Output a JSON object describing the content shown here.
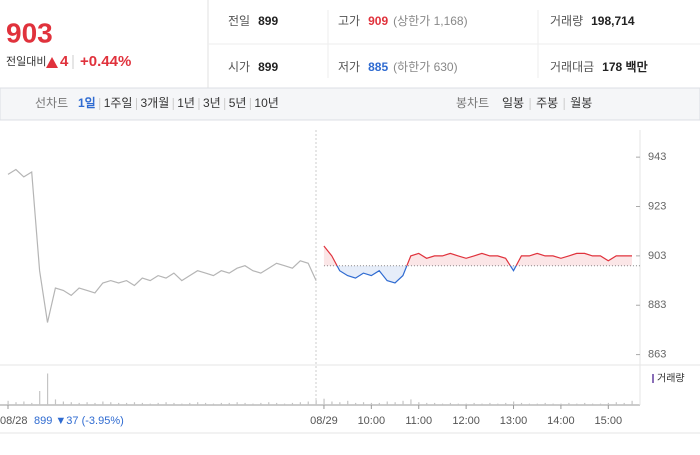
{
  "quote": {
    "price": "903",
    "change_label": "전일대비",
    "change": "4",
    "change_pct": "+0.44%"
  },
  "stats": [
    [
      {
        "label": "전일",
        "value": "899"
      },
      {
        "label": "고가",
        "value": "909",
        "note": "(상한가 1,168)"
      },
      {
        "label": "거래량",
        "value": "198,714"
      }
    ],
    [
      {
        "label": "시가",
        "value": "899"
      },
      {
        "label": "저가",
        "value": "885",
        "note": "(하한가 630)"
      },
      {
        "label": "거래대금",
        "value": "178 백만"
      }
    ]
  ],
  "tabs": {
    "line_label": "선차트",
    "periods": [
      "1일",
      "1주일",
      "3개월",
      "1년",
      "3년",
      "5년",
      "10년"
    ],
    "active": 0,
    "candle_label": "봉차트",
    "candles": [
      "일봉",
      "주봉",
      "월봉"
    ]
  },
  "chart_data": {
    "type": "line",
    "categories": [
      "08/28",
      null,
      null,
      null,
      null,
      null,
      null,
      null,
      null,
      null,
      null,
      null,
      null,
      null,
      null,
      null,
      null,
      null,
      null,
      null,
      null,
      null,
      null,
      null,
      null,
      null,
      null,
      null,
      null,
      null,
      null,
      null,
      null,
      null,
      null,
      null,
      null,
      null,
      null,
      null,
      "08/29",
      null,
      null,
      null,
      null,
      null,
      "10:00",
      null,
      null,
      null,
      null,
      null,
      "11:00",
      null,
      null,
      null,
      null,
      null,
      "12:00",
      null,
      null,
      null,
      null,
      null,
      "13:00",
      null,
      null,
      null,
      null,
      null,
      "14:00",
      null,
      null,
      null,
      null,
      null,
      "15:00",
      null,
      null,
      null
    ],
    "series": [
      {
        "color": "#b5b5b5",
        "values": [
          936,
          938,
          935,
          937,
          897,
          876,
          890,
          889,
          887,
          890,
          889,
          888,
          892,
          893,
          892,
          893,
          891,
          894,
          893,
          895,
          894,
          896,
          893,
          895,
          897,
          896,
          895,
          897,
          896,
          898,
          899,
          897,
          896,
          898,
          900,
          899,
          898,
          901,
          900,
          893,
          null,
          null,
          null,
          null,
          null,
          null,
          null,
          null,
          null,
          null,
          null,
          null,
          null,
          null,
          null,
          null,
          null,
          null,
          null,
          null,
          null,
          null,
          null,
          null,
          null,
          null,
          null,
          null,
          null,
          null,
          null,
          null,
          null,
          null,
          null,
          null,
          null,
          null,
          null,
          null
        ]
      },
      {
        "up_color": "#e0323c",
        "down_color": "#2f6bd1",
        "values": [
          null,
          null,
          null,
          null,
          null,
          null,
          null,
          null,
          null,
          null,
          null,
          null,
          null,
          null,
          null,
          null,
          null,
          null,
          null,
          null,
          null,
          null,
          null,
          null,
          null,
          null,
          null,
          null,
          null,
          null,
          null,
          null,
          null,
          null,
          null,
          null,
          null,
          null,
          null,
          null,
          907,
          903,
          897,
          895,
          894,
          896,
          895,
          897,
          893,
          892,
          895,
          903,
          904,
          902,
          903,
          903,
          904,
          903,
          902,
          903,
          904,
          903,
          903,
          902,
          897,
          903,
          903,
          904,
          903,
          903,
          902,
          903,
          904,
          904,
          903,
          903,
          901,
          903,
          903,
          903
        ]
      }
    ],
    "reference_line": 899,
    "ylim": [
      860,
      954
    ],
    "yticks": [
      943,
      923,
      903,
      883,
      863
    ],
    "volume": {
      "name": "거래량",
      "color": "#c4c4c4",
      "ylim": [
        0,
        50
      ],
      "values": [
        6,
        4,
        5,
        3,
        20,
        45,
        8,
        5,
        4,
        3,
        4,
        3,
        5,
        4,
        3,
        3,
        4,
        3,
        2,
        3,
        4,
        3,
        2,
        3,
        4,
        3,
        2,
        3,
        3,
        4,
        3,
        2,
        3,
        4,
        3,
        2,
        3,
        4,
        5,
        7,
        9,
        5,
        4,
        6,
        3,
        4,
        3,
        3,
        5,
        4,
        6,
        8,
        4,
        3,
        3,
        2,
        3,
        2,
        2,
        3,
        2,
        3,
        2,
        3,
        5,
        3,
        2,
        2,
        3,
        2,
        2,
        3,
        2,
        3,
        2,
        2,
        3,
        4,
        3,
        6
      ]
    },
    "annotation": "899 ▼37 (-3.95%)"
  }
}
